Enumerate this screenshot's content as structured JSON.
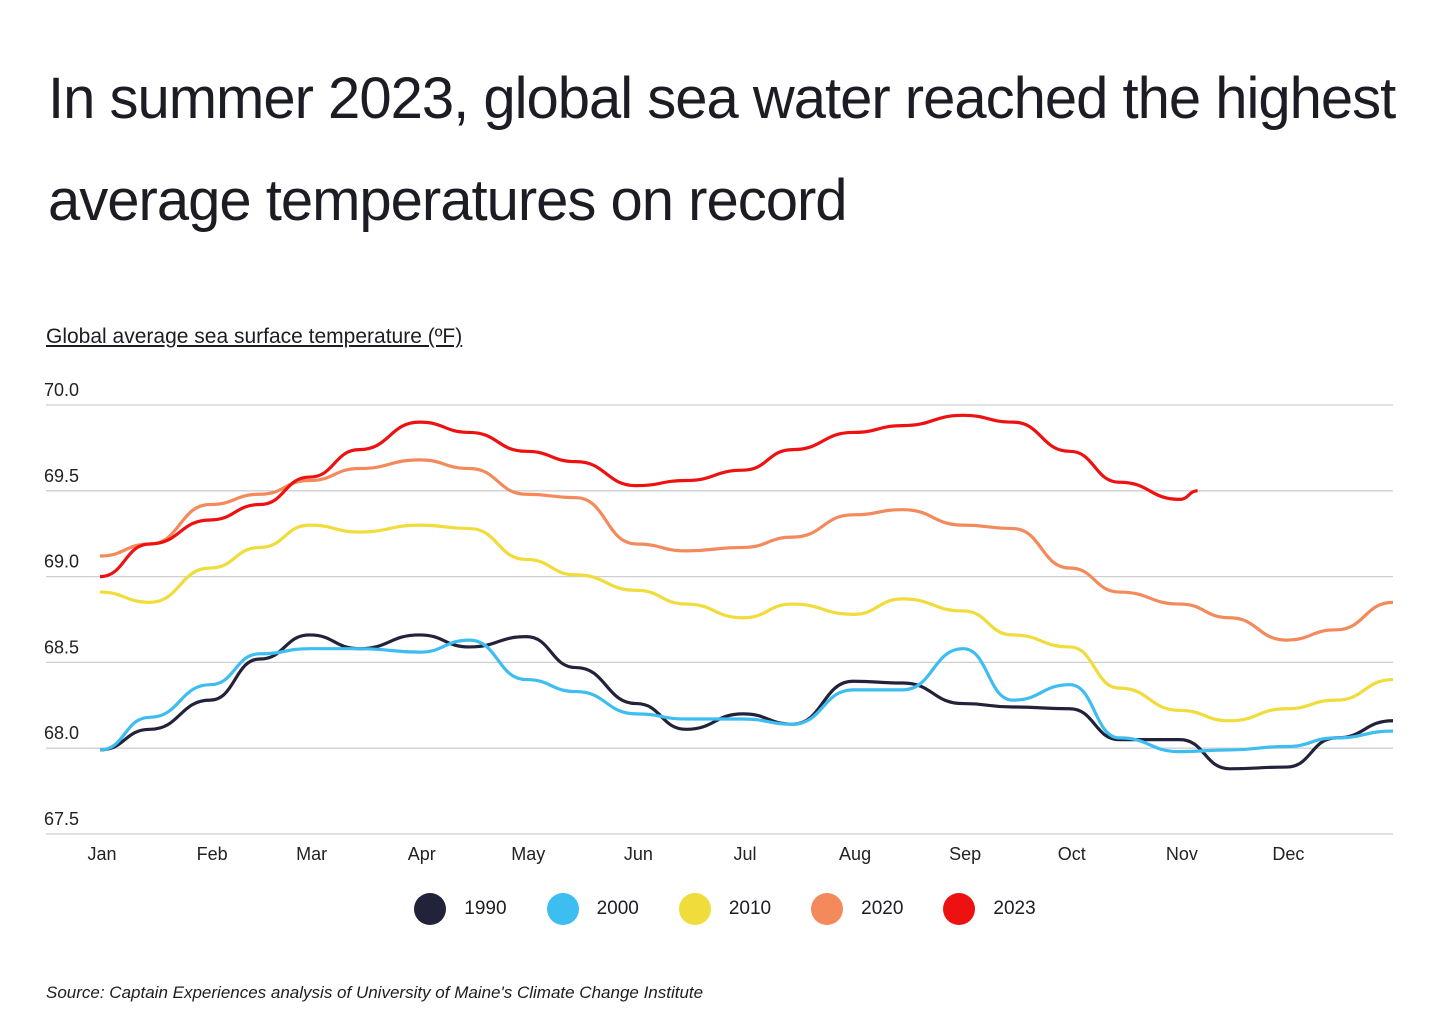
{
  "title": "In summer 2023, global sea water reached the highest average temperatures on record",
  "source": "Source: Captain Experiences analysis of University of Maine's Climate Change Institute",
  "chart_data": {
    "type": "line",
    "ylabel": "Global average sea surface temperature (ºF)",
    "ylim": [
      67.5,
      70.0
    ],
    "yticks": [
      "70.0",
      "69.5",
      "69.0",
      "68.5",
      "68.0",
      "67.5"
    ],
    "xticks": [
      "Jan",
      "Feb",
      "Mar",
      "Apr",
      "May",
      "Jun",
      "Jul",
      "Aug",
      "Sep",
      "Oct",
      "Nov",
      "Dec"
    ],
    "grid": "horizontal",
    "legend": "bottom",
    "x": [
      "Jan 1",
      "Jan 15",
      "Feb 1",
      "Feb 15",
      "Mar 1",
      "Mar 15",
      "Apr 1",
      "Apr 15",
      "May 1",
      "May 15",
      "Jun 1",
      "Jun 15",
      "Jul 1",
      "Jul 15",
      "Aug 1",
      "Aug 15",
      "Sep 1",
      "Sep 15",
      "Oct 1",
      "Oct 15",
      "Nov 1",
      "Nov 15",
      "Dec 1",
      "Dec 15",
      "Dec 31"
    ],
    "series": [
      {
        "name": "1990",
        "color": "#22223a",
        "values": [
          67.99,
          68.11,
          68.28,
          68.52,
          68.66,
          68.58,
          68.66,
          68.59,
          68.65,
          68.47,
          68.26,
          68.11,
          68.2,
          68.14,
          68.39,
          68.38,
          68.26,
          68.24,
          68.23,
          68.05,
          68.05,
          67.88,
          67.89,
          68.06,
          68.16
        ]
      },
      {
        "name": "2000",
        "color": "#3dbdf0",
        "values": [
          67.99,
          68.18,
          68.37,
          68.55,
          68.58,
          68.58,
          68.56,
          68.63,
          68.4,
          68.33,
          68.2,
          68.17,
          68.17,
          68.14,
          68.34,
          68.34,
          68.58,
          68.28,
          68.37,
          68.06,
          67.98,
          67.99,
          68.01,
          68.06,
          68.1
        ]
      },
      {
        "name": "2010",
        "color": "#f0dc3a",
        "values": [
          68.91,
          68.85,
          69.05,
          69.17,
          69.3,
          69.26,
          69.3,
          69.28,
          69.1,
          69.01,
          68.92,
          68.84,
          68.76,
          68.84,
          68.78,
          68.87,
          68.8,
          68.66,
          68.59,
          68.35,
          68.22,
          68.16,
          68.23,
          68.28,
          68.4
        ]
      },
      {
        "name": "2020",
        "color": "#f48a5c",
        "values": [
          69.12,
          69.19,
          69.42,
          69.48,
          69.56,
          69.63,
          69.68,
          69.63,
          69.48,
          69.46,
          69.19,
          69.15,
          69.17,
          69.23,
          69.36,
          69.39,
          69.3,
          69.28,
          69.05,
          68.91,
          68.84,
          68.76,
          68.63,
          68.69,
          68.85
        ]
      },
      {
        "name": "2023",
        "color": "#ee1111",
        "values": [
          69.0,
          69.19,
          69.33,
          69.42,
          69.58,
          69.74,
          69.9,
          69.84,
          69.73,
          69.67,
          69.53,
          69.56,
          69.62,
          69.74,
          69.84,
          69.88,
          69.94,
          69.9,
          69.73,
          69.55,
          69.45,
          null,
          null,
          null,
          null
        ]
      }
    ]
  }
}
